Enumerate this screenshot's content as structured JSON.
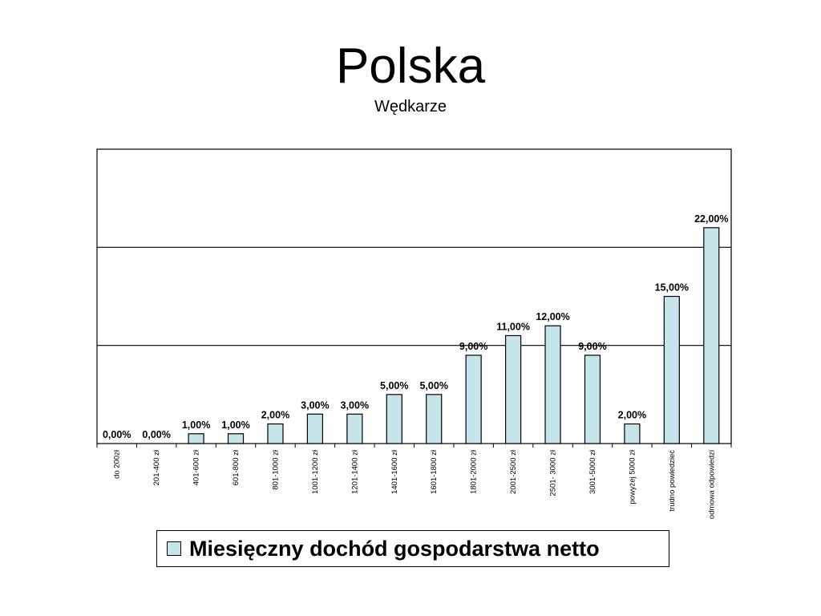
{
  "chart_data": {
    "type": "bar",
    "title": "Polska",
    "subtitle": "Wędkarze",
    "categories": [
      "do 200zł",
      "201-400 zł",
      "401-600 zł",
      "601-800 zł",
      "801-1000 zł",
      "1001-1200 zł",
      "1201-1400 zł",
      "1401-1600 zł",
      "1601-1800 zł",
      "1801-2000 zł",
      "2001-2500 zł",
      "2501- 3000 zł",
      "3001-5000 zł",
      "powyżej 5000 zł",
      "trudno powiedzieć",
      "odmowa odpowiedzi"
    ],
    "series": [
      {
        "name": "Miesięczny dochód gospodarstwa netto",
        "values": [
          0,
          0,
          1,
          1,
          2,
          3,
          3,
          5,
          5,
          9,
          11,
          12,
          9,
          2,
          15,
          22
        ],
        "labels": [
          "0,00%",
          "0,00%",
          "1,00%",
          "1,00%",
          "2,00%",
          "3,00%",
          "3,00%",
          "5,00%",
          "5,00%",
          "9,00%",
          "11,00%",
          "12,00%",
          "9,00%",
          "2,00%",
          "15,00%",
          "22,00%"
        ]
      }
    ],
    "ylim": [
      0,
      30
    ],
    "gridlines": [
      10,
      20
    ],
    "grid": true,
    "legend": "bottom",
    "colors": {
      "bar_fill": "#c5e5ea",
      "bar_stroke": "#000000",
      "grid": "#000000"
    }
  }
}
